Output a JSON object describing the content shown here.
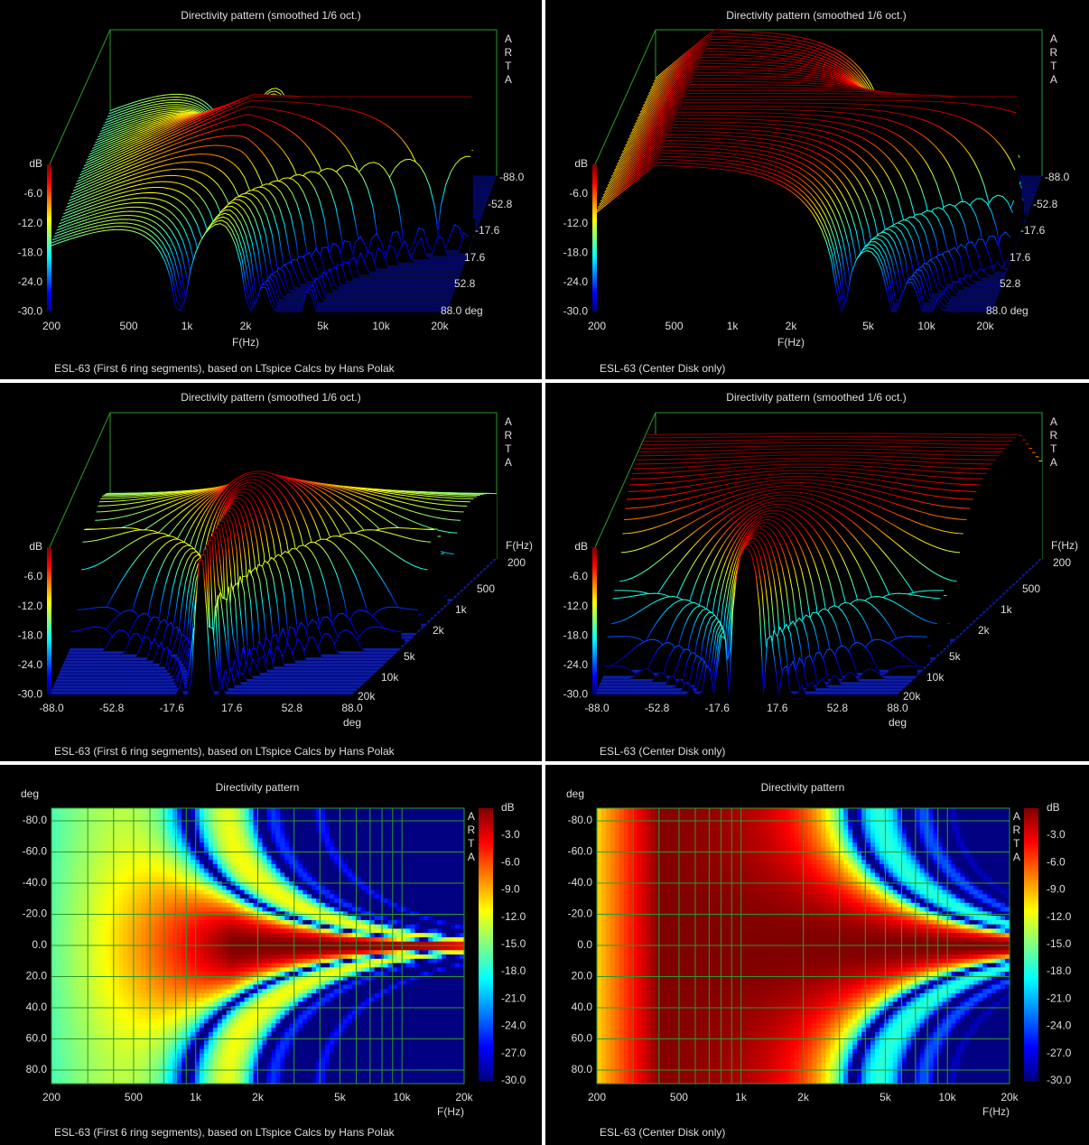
{
  "panels": [
    {
      "title": "Directivity pattern (smoothed 1/6 oct.)",
      "brand": "ARTA",
      "z_label": "dB",
      "z_ticks": [
        "-6.0",
        "-12.0",
        "-18.0",
        "-24.0",
        "-30.0"
      ],
      "freq_ticks": [
        "200",
        "500",
        "1k",
        "2k",
        "5k",
        "10k",
        "20k"
      ],
      "freq_label": "F(Hz)",
      "angle_ticks": [
        "-88.0",
        "-52.8",
        "-17.6",
        "17.6",
        "52.8",
        "88.0 deg"
      ],
      "caption": "ESL-63 (First 6 ring segments), based on LTspice Calcs by Hans Polak"
    },
    {
      "title": "Directivity pattern (smoothed 1/6 oct.)",
      "brand": "ARTA",
      "z_label": "dB",
      "z_ticks": [
        "-6.0",
        "-12.0",
        "-18.0",
        "-24.0",
        "-30.0"
      ],
      "freq_ticks": [
        "200",
        "500",
        "1k",
        "2k",
        "5k",
        "10k",
        "20k"
      ],
      "freq_label": "F(Hz)",
      "angle_ticks": [
        "-88.0",
        "-52.8",
        "-17.6",
        "17.6",
        "52.8",
        "88.0 deg"
      ],
      "caption": "ESL-63 (Center Disk only)"
    },
    {
      "title": "Directivity pattern (smoothed 1/6 oct.)",
      "brand": "ARTA",
      "z_label": "dB",
      "z_ticks": [
        "-6.0",
        "-12.0",
        "-18.0",
        "-24.0",
        "-30.0"
      ],
      "freq_ticks": [
        "200",
        "500",
        "1k",
        "2k",
        "5k",
        "10k",
        "20k"
      ],
      "freq_label": "F(Hz)",
      "angle_ticks": [
        "-88.0",
        "-52.8",
        "-17.6",
        "17.6",
        "52.8",
        "88.0"
      ],
      "angle_label": "deg",
      "caption": "ESL-63 (First 6 ring segments), based on LTspice Calcs by Hans Polak"
    },
    {
      "title": "Directivity pattern (smoothed 1/6 oct.)",
      "brand": "ARTA",
      "z_label": "dB",
      "z_ticks": [
        "-6.0",
        "-12.0",
        "-18.0",
        "-24.0",
        "-30.0"
      ],
      "freq_ticks": [
        "200",
        "500",
        "1k",
        "2k",
        "5k",
        "10k",
        "20k"
      ],
      "freq_label": "F(Hz)",
      "angle_ticks": [
        "-88.0",
        "-52.8",
        "-17.6",
        "17.6",
        "52.8",
        "88.0"
      ],
      "angle_label": "deg",
      "caption": "ESL-63 (Center Disk only)"
    },
    {
      "title": "Directivity pattern",
      "brand": "ARTA",
      "z_label": "dB",
      "z_ticks": [
        "-3.0",
        "-6.0",
        "-9.0",
        "-12.0",
        "-15.0",
        "-18.0",
        "-21.0",
        "-24.0",
        "-27.0",
        "-30.0"
      ],
      "freq_ticks": [
        "200",
        "500",
        "1k",
        "2k",
        "5k",
        "10k",
        "20k"
      ],
      "freq_label": "F(Hz)",
      "angle_ticks": [
        "-80.0",
        "-60.0",
        "-40.0",
        "-20.0",
        "0.0",
        "20.0",
        "40.0",
        "60.0",
        "80.0"
      ],
      "angle_label": "deg",
      "caption": "ESL-63 (First 6 ring segments), based on LTspice Calcs by Hans Polak"
    },
    {
      "title": "Directivity pattern",
      "brand": "ARTA",
      "z_label": "dB",
      "z_ticks": [
        "-3.0",
        "-6.0",
        "-9.0",
        "-12.0",
        "-15.0",
        "-18.0",
        "-21.0",
        "-24.0",
        "-27.0",
        "-30.0"
      ],
      "freq_ticks": [
        "200",
        "500",
        "1k",
        "2k",
        "5k",
        "10k",
        "20k"
      ],
      "freq_label": "F(Hz)",
      "angle_ticks": [
        "-80.0",
        "-60.0",
        "-40.0",
        "-20.0",
        "0.0",
        "20.0",
        "40.0",
        "60.0",
        "80.0"
      ],
      "angle_label": "deg",
      "caption": "ESL-63 (Center Disk only)"
    }
  ]
}
